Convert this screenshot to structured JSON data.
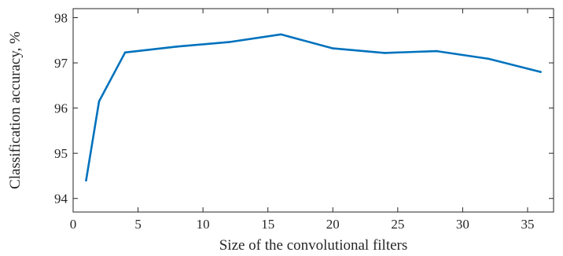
{
  "chart_data": {
    "type": "line",
    "xlabel": "Size of the convolutional filters",
    "ylabel": "Classification accuracy, %",
    "xlim": [
      0,
      37
    ],
    "ylim": [
      93.7,
      98.2
    ],
    "xticks": [
      0,
      5,
      10,
      15,
      20,
      25,
      30,
      35
    ],
    "yticks": [
      94,
      95,
      96,
      97,
      98
    ],
    "grid": false,
    "series": [
      {
        "color": "#0072BD",
        "x": [
          1,
          2,
          4,
          8,
          12,
          16,
          20,
          24,
          28,
          32,
          36
        ],
        "y": [
          94.4,
          96.15,
          97.23,
          97.36,
          97.46,
          97.63,
          97.32,
          97.22,
          97.26,
          97.09,
          96.8
        ]
      }
    ]
  }
}
